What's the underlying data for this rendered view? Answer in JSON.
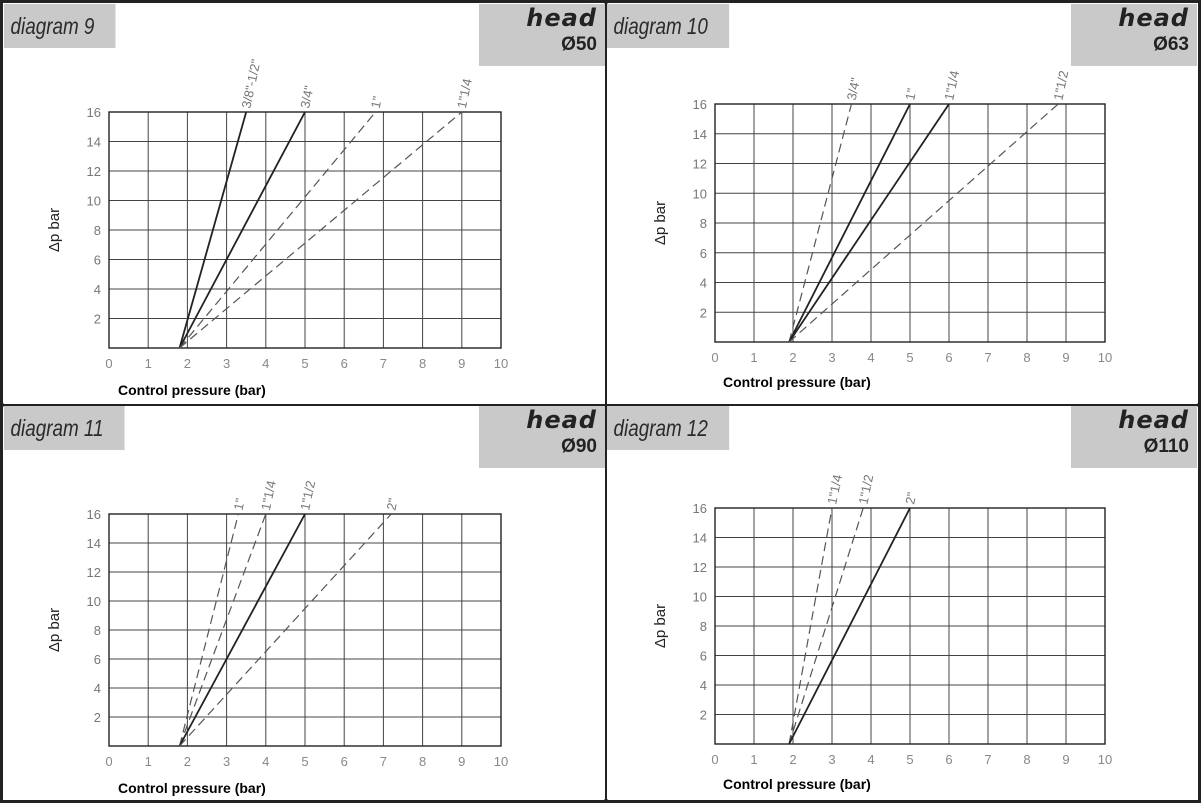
{
  "chart_data": [
    {
      "type": "line",
      "title": "diagram 9",
      "head_label": "head",
      "head_diameter": "Ø50",
      "xlabel": "Control pressure (bar)",
      "ylabel": "Δp bar",
      "xlim": [
        0,
        10
      ],
      "ylim": [
        0,
        16
      ],
      "x_ticks": [
        0,
        1,
        2,
        3,
        4,
        5,
        6,
        7,
        8,
        9,
        10
      ],
      "y_ticks": [
        2,
        4,
        6,
        8,
        10,
        12,
        14,
        16
      ],
      "grid": true,
      "series": [
        {
          "name": "3/8\"-1/2\"",
          "style": "solid",
          "x": [
            1.8,
            3.5
          ],
          "y": [
            0,
            16
          ]
        },
        {
          "name": "3/4\"",
          "style": "solid",
          "x": [
            1.8,
            5.0
          ],
          "y": [
            0,
            16
          ]
        },
        {
          "name": "1\"",
          "style": "dashed",
          "x": [
            1.8,
            6.8
          ],
          "y": [
            0,
            16
          ]
        },
        {
          "name": "1\"1/4",
          "style": "dashed",
          "x": [
            1.8,
            9.0
          ],
          "y": [
            0,
            16
          ]
        }
      ]
    },
    {
      "type": "line",
      "title": "diagram 10",
      "head_label": "head",
      "head_diameter": "Ø63",
      "xlabel": "Control pressure (bar)",
      "ylabel": "Δp bar",
      "xlim": [
        0,
        10
      ],
      "ylim": [
        0,
        16
      ],
      "x_ticks": [
        0,
        1,
        2,
        3,
        4,
        5,
        6,
        7,
        8,
        9,
        10
      ],
      "y_ticks": [
        2,
        4,
        6,
        8,
        10,
        12,
        14,
        16
      ],
      "grid": true,
      "series": [
        {
          "name": "3/4\"",
          "style": "dashed",
          "x": [
            1.9,
            3.5
          ],
          "y": [
            0,
            16
          ]
        },
        {
          "name": "1\"",
          "style": "solid",
          "x": [
            1.9,
            5.0
          ],
          "y": [
            0,
            16
          ]
        },
        {
          "name": "1\"1/4",
          "style": "solid",
          "x": [
            1.9,
            6.0
          ],
          "y": [
            0,
            16
          ]
        },
        {
          "name": "1\"1/2",
          "style": "dashed",
          "x": [
            1.9,
            8.8
          ],
          "y": [
            0,
            16
          ]
        }
      ]
    },
    {
      "type": "line",
      "title": "diagram 11",
      "head_label": "head",
      "head_diameter": "Ø90",
      "xlabel": "Control pressure (bar)",
      "ylabel": "Δp bar",
      "xlim": [
        0,
        10
      ],
      "ylim": [
        0,
        16
      ],
      "x_ticks": [
        0,
        1,
        2,
        3,
        4,
        5,
        6,
        7,
        8,
        9,
        10
      ],
      "y_ticks": [
        2,
        4,
        6,
        8,
        10,
        12,
        14,
        16
      ],
      "grid": true,
      "series": [
        {
          "name": "1\"",
          "style": "dashed",
          "x": [
            1.8,
            3.3
          ],
          "y": [
            0,
            16
          ]
        },
        {
          "name": "1\"1/4",
          "style": "dashed",
          "x": [
            1.8,
            4.0
          ],
          "y": [
            0,
            16
          ]
        },
        {
          "name": "1\"1/2",
          "style": "solid",
          "x": [
            1.8,
            5.0
          ],
          "y": [
            0,
            16
          ]
        },
        {
          "name": "2\"",
          "style": "dashed",
          "x": [
            1.8,
            7.2
          ],
          "y": [
            0,
            16
          ]
        }
      ]
    },
    {
      "type": "line",
      "title": "diagram 12",
      "head_label": "head",
      "head_diameter": "Ø110",
      "xlabel": "Control pressure (bar)",
      "ylabel": "Δp bar",
      "xlim": [
        0,
        10
      ],
      "ylim": [
        0,
        16
      ],
      "x_ticks": [
        0,
        1,
        2,
        3,
        4,
        5,
        6,
        7,
        8,
        9,
        10
      ],
      "y_ticks": [
        2,
        4,
        6,
        8,
        10,
        12,
        14,
        16
      ],
      "grid": true,
      "series": [
        {
          "name": "1\"1/4",
          "style": "dashed",
          "x": [
            1.9,
            3.0
          ],
          "y": [
            0,
            16
          ]
        },
        {
          "name": "1\"1/2",
          "style": "dashed",
          "x": [
            1.9,
            3.8
          ],
          "y": [
            0,
            16
          ]
        },
        {
          "name": "2\"",
          "style": "solid",
          "x": [
            1.9,
            5.0
          ],
          "y": [
            0,
            16
          ]
        }
      ]
    }
  ]
}
